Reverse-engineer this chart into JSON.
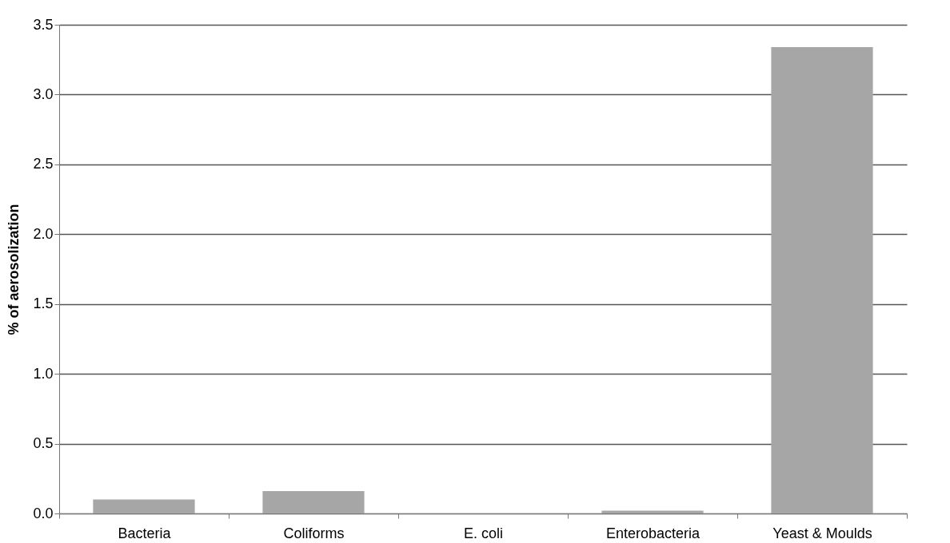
{
  "chart_data": {
    "type": "bar",
    "ylabel": "% of aerosolization",
    "categories": [
      "Bacteria",
      "Coliforms",
      "E. coli",
      "Enterobacteria",
      "Yeast & Moulds"
    ],
    "values": [
      0.1,
      0.16,
      0,
      0.02,
      3.34
    ],
    "color": "#a6a6a6",
    "ylim": [
      0,
      3.5
    ],
    "yticks": [
      {
        "value": 0,
        "label": "0.0"
      },
      {
        "value": 0.5,
        "label": "0.5"
      },
      {
        "value": 1,
        "label": "1.0"
      },
      {
        "value": 1.5,
        "label": "1.5"
      },
      {
        "value": 2,
        "label": "2.0"
      },
      {
        "value": 2.5,
        "label": "2.5"
      },
      {
        "value": 3,
        "label": "3.0"
      },
      {
        "value": 3.5,
        "label": "3.5"
      }
    ],
    "grid": "y"
  }
}
